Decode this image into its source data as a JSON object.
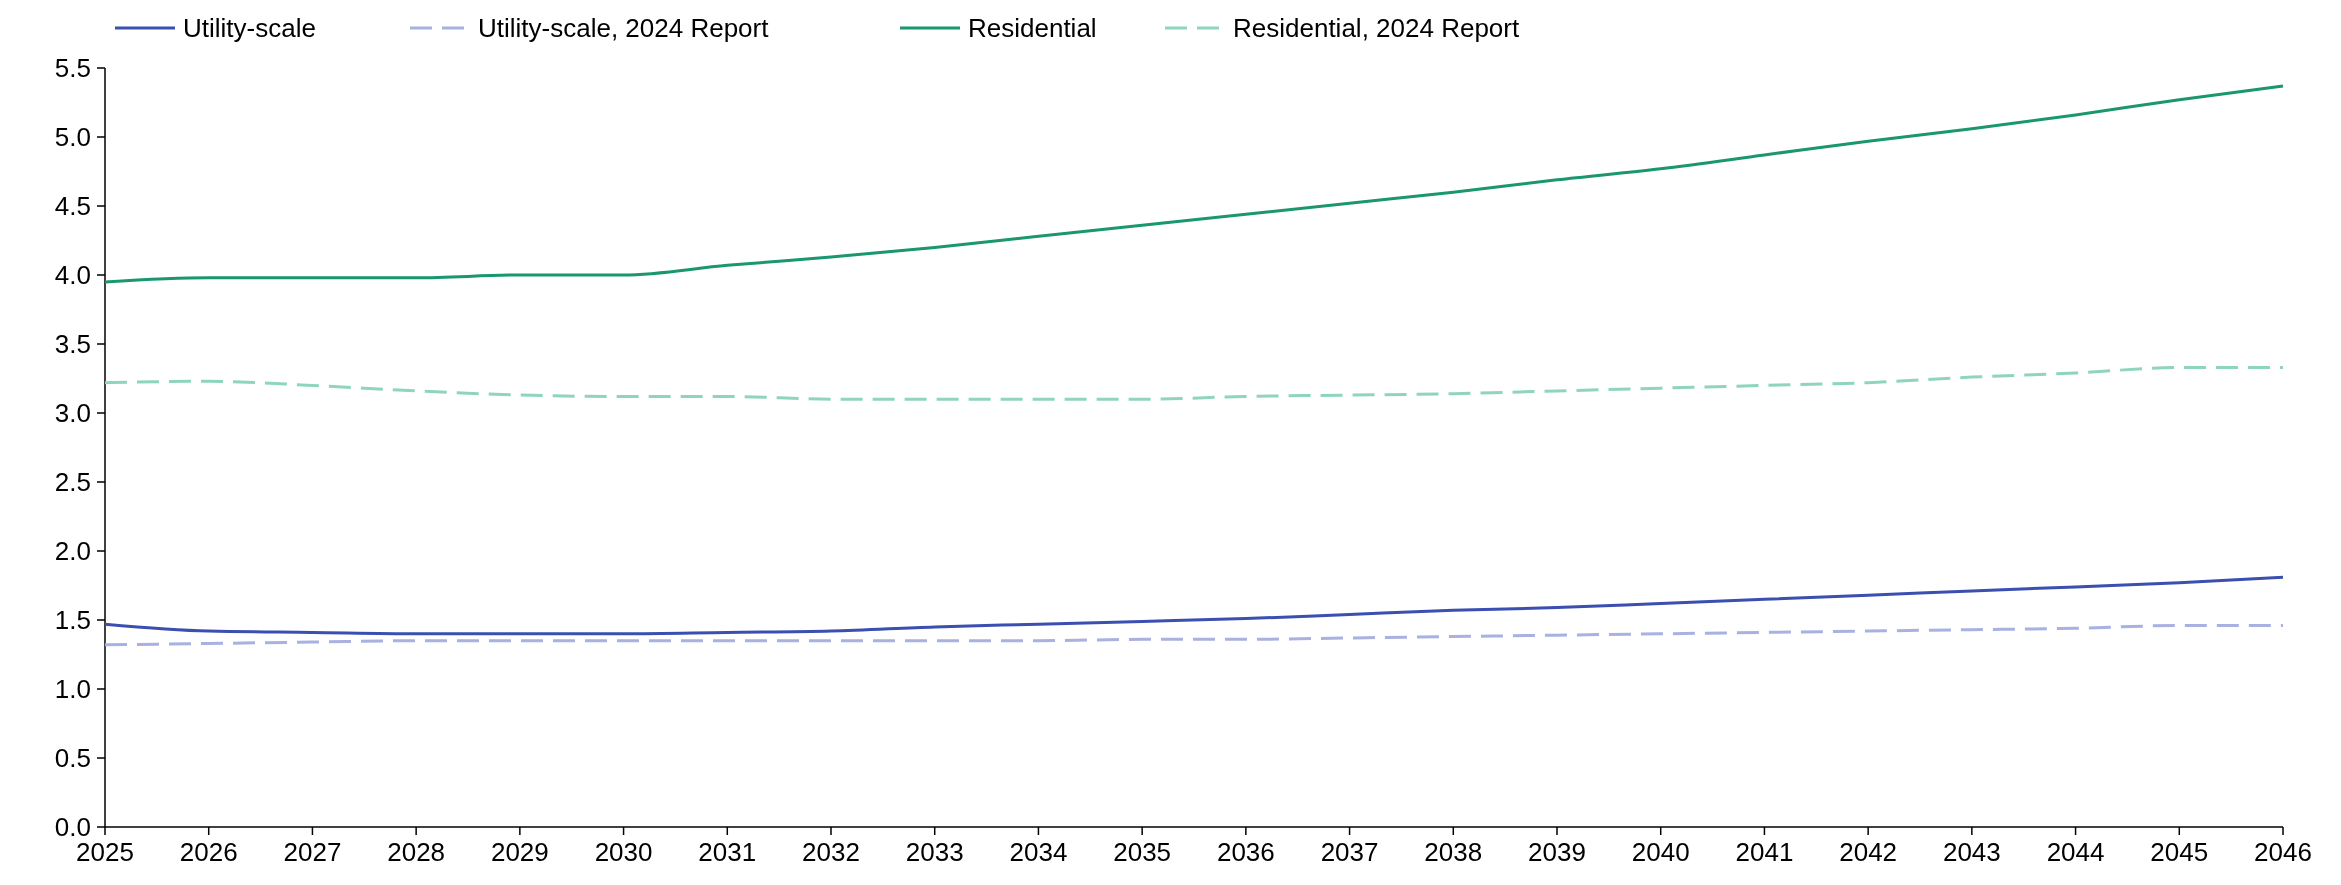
{
  "chart_data": {
    "type": "line",
    "x": [
      2025,
      2026,
      2027,
      2028,
      2029,
      2030,
      2031,
      2032,
      2033,
      2034,
      2035,
      2036,
      2037,
      2038,
      2039,
      2040,
      2041,
      2042,
      2043,
      2044,
      2045,
      2046
    ],
    "xlim": [
      2025,
      2046
    ],
    "xticks": [
      2025,
      2026,
      2027,
      2028,
      2029,
      2030,
      2031,
      2032,
      2033,
      2034,
      2035,
      2036,
      2037,
      2038,
      2039,
      2040,
      2041,
      2042,
      2043,
      2044,
      2045,
      2046
    ],
    "ylim": [
      0,
      5.5
    ],
    "yticks": [
      {
        "value": 0,
        "label": "0.0"
      },
      {
        "value": 0.5,
        "label": "0.5"
      },
      {
        "value": 1,
        "label": "1.0"
      },
      {
        "value": 1.5,
        "label": "1.5"
      },
      {
        "value": 2,
        "label": "2.0"
      },
      {
        "value": 2.5,
        "label": "2.5"
      },
      {
        "value": 3,
        "label": "3.0"
      },
      {
        "value": 3.5,
        "label": "3.5"
      },
      {
        "value": 4,
        "label": "4.0"
      },
      {
        "value": 4.5,
        "label": "4.5"
      },
      {
        "value": 5,
        "label": "5.0"
      },
      {
        "value": 5.5,
        "label": "5.5"
      }
    ],
    "grid": false,
    "legend": "top left",
    "marker": "none",
    "series": [
      {
        "name": "Utility-scale",
        "color": "#3a4fb0",
        "line_style": "solid",
        "values": [
          1.47,
          1.42,
          1.41,
          1.4,
          1.4,
          1.4,
          1.41,
          1.42,
          1.45,
          1.47,
          1.49,
          1.51,
          1.54,
          1.57,
          1.59,
          1.62,
          1.65,
          1.68,
          1.71,
          1.74,
          1.77,
          1.81
        ]
      },
      {
        "name": "Utility-scale, 2024 Report",
        "color": "#a9b1e0",
        "line_style": "dashed",
        "values": [
          1.32,
          1.33,
          1.34,
          1.35,
          1.35,
          1.35,
          1.35,
          1.35,
          1.35,
          1.35,
          1.36,
          1.36,
          1.37,
          1.38,
          1.39,
          1.4,
          1.41,
          1.42,
          1.43,
          1.44,
          1.46,
          1.46
        ]
      },
      {
        "name": "Residential",
        "color": "#1a9670",
        "line_style": "solid",
        "values": [
          3.95,
          3.98,
          3.98,
          3.98,
          4.0,
          4.0,
          4.07,
          4.13,
          4.2,
          4.28,
          4.36,
          4.44,
          4.52,
          4.6,
          4.69,
          4.77,
          4.87,
          4.97,
          5.06,
          5.16,
          5.27,
          5.37
        ]
      },
      {
        "name": "Residential, 2024 Report",
        "color": "#8fd5bd",
        "line_style": "dashed",
        "values": [
          3.22,
          3.23,
          3.2,
          3.16,
          3.13,
          3.12,
          3.12,
          3.1,
          3.1,
          3.1,
          3.1,
          3.12,
          3.13,
          3.14,
          3.16,
          3.18,
          3.2,
          3.22,
          3.26,
          3.29,
          3.33,
          3.33
        ]
      }
    ]
  }
}
